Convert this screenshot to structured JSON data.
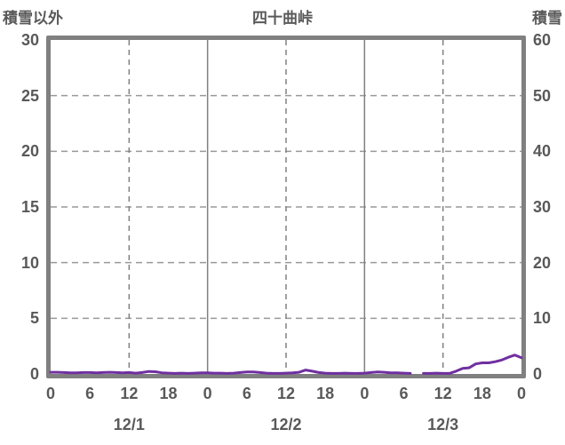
{
  "chart_data": {
    "type": "line",
    "title": "四十曲峠",
    "left_axis": {
      "label": "積雪以外",
      "min": 0,
      "max": 30,
      "ticks": [
        0,
        5,
        10,
        15,
        20,
        25,
        30
      ]
    },
    "right_axis": {
      "label": "積雪",
      "min": 0,
      "max": 60,
      "ticks": [
        0,
        10,
        20,
        30,
        40,
        50,
        60
      ]
    },
    "x_axis": {
      "hours_total": 72,
      "tick_step_hours": 6,
      "tick_labels": [
        "0",
        "6",
        "12",
        "18",
        "0",
        "6",
        "12",
        "18",
        "0",
        "6",
        "12",
        "18",
        "0"
      ],
      "day_labels": [
        "12/1",
        "12/2",
        "12/3"
      ],
      "solid_gridline_hours": [
        24,
        48
      ],
      "dashed_gridline_hours": [
        12,
        36,
        60
      ]
    },
    "grid": {
      "horizontal_dashed": true,
      "vertical_day_solid": true,
      "vertical_midday_dashed": true
    },
    "legend_position": "none",
    "series": [
      {
        "name": "積雪",
        "axis": "right",
        "color": "#7030A0",
        "x_hours_start": 0,
        "x_hours_step": 1,
        "values": [
          0.3,
          0.3,
          0.25,
          0.2,
          0.2,
          0.25,
          0.25,
          0.2,
          0.25,
          0.3,
          0.25,
          0.2,
          0.25,
          0.15,
          0.25,
          0.45,
          0.4,
          0.2,
          0.15,
          0.1,
          0.15,
          0.1,
          0.15,
          0.2,
          0.2,
          0.15,
          0.15,
          0.1,
          0.15,
          0.25,
          0.35,
          0.35,
          0.25,
          0.15,
          0.1,
          0.1,
          0.15,
          0.2,
          0.3,
          0.7,
          0.5,
          0.25,
          0.15,
          0.1,
          0.1,
          0.15,
          0.1,
          0.1,
          0.15,
          0.25,
          0.35,
          0.3,
          0.2,
          0.2,
          0.15,
          0.1,
          null,
          0.1,
          0.1,
          0.15,
          0.1,
          0.1,
          0.5,
          1.0,
          1.1,
          1.8,
          2.0,
          2.0,
          2.2,
          2.5,
          3.0,
          3.4,
          2.9
        ]
      }
    ],
    "colors": {
      "line": "#7030A0",
      "border": "#808080",
      "gridline_vertical": "#808080",
      "gridline_horizontal": "#999999",
      "text": "#595959",
      "background": "#ffffff"
    }
  }
}
